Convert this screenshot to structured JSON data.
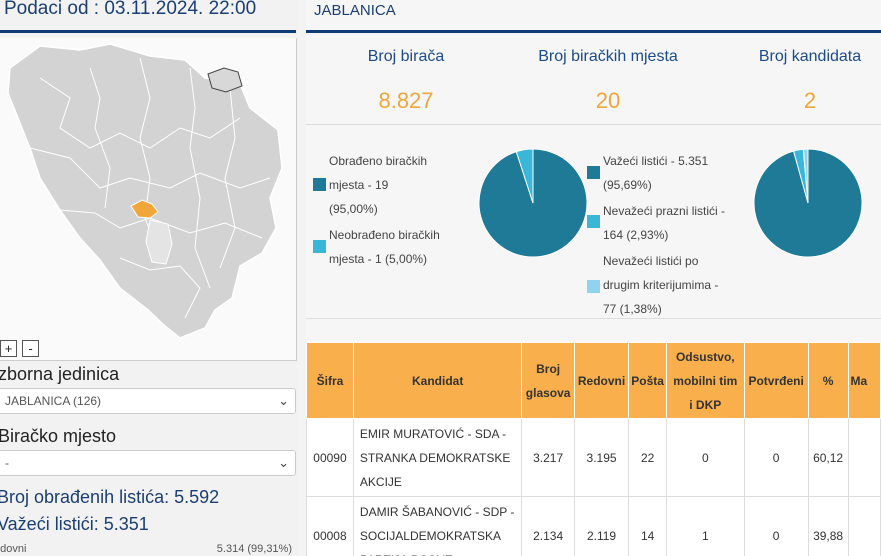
{
  "header": {
    "date_title": "Podaci od : 03.11.2024. 22:00",
    "municipality": "JABLANICA"
  },
  "zoom": {
    "plus": "+",
    "minus": "-"
  },
  "filters": {
    "electoral_unit_label": "zborna jedinica",
    "electoral_unit_value": "JABLANICA (126)",
    "polling_station_label": "Biračko mjesto",
    "polling_station_value": "-"
  },
  "summary": {
    "processed_ballots": "Broj obrađenih listića: 5.592",
    "valid_ballots": "Važeći listići: 5.351",
    "regular_label": "edovni",
    "regular_value": "5.314 (99,31%)"
  },
  "stats": [
    {
      "label": "Broj birača",
      "value": "8.827"
    },
    {
      "label": "Broj biračkih mjesta",
      "value": "20"
    },
    {
      "label": "Broj kandidata",
      "value": "2"
    }
  ],
  "legend_left": {
    "processed_l1": "Obrađeno biračkih",
    "processed_l2": "mjesta - 19",
    "processed_l3": "(95,00%)",
    "unprocessed_l1": "Neobrađeno biračkih",
    "unprocessed_l2": "mjesta - 1 (5,00%)"
  },
  "legend_right": {
    "valid_l1": "Važeći listići - 5.351",
    "valid_l2": "(95,69%)",
    "blank_l1": "Nevažeći prazni listići -",
    "blank_l2": "164 (2,93%)",
    "other_l1": "Nevažeći listići po",
    "other_l2": "drugim kriterijumima -",
    "other_l3": "77 (1,38%)"
  },
  "pie_stations": {
    "slices": [
      {
        "name": "processed",
        "value": 95.0,
        "color": "#1e7a96"
      },
      {
        "name": "unprocessed",
        "value": 5.0,
        "color": "#3ab7d8"
      }
    ]
  },
  "pie_ballots": {
    "slices": [
      {
        "name": "valid",
        "value": 95.69,
        "color": "#1e7a96"
      },
      {
        "name": "blank",
        "value": 2.93,
        "color": "#3ab7d8"
      },
      {
        "name": "other",
        "value": 1.38,
        "color": "#8fd3ee"
      }
    ]
  },
  "table": {
    "headers": {
      "code": "Šifra",
      "candidate": "Kandidat",
      "votes_l1": "Broj",
      "votes_l2": "glasova",
      "regular": "Redovni",
      "mail": "Pošta",
      "absent_l1": "Odsustvo,",
      "absent_l2": "mobilni tim",
      "absent_l3": "i DKP",
      "confirmed": "Potvrđeni",
      "percent": "%",
      "cut": "Ma"
    },
    "rows": [
      {
        "code": "00090",
        "name_l1": "EMIR MURATOVIĆ - SDA -",
        "name_l2": "STRANKA DEMOKRATSKE",
        "name_l3": "AKCIJE",
        "votes": "3.217",
        "regular": "3.195",
        "mail": "22",
        "absent": "0",
        "confirmed": "0",
        "percent": "60,12"
      },
      {
        "code": "00008",
        "name_l1": "DAMIR ŠABANOVIĆ - SDP -",
        "name_l2": "SOCIJALDEMOKRATSKA",
        "name_l3": "PARTIJA BOSNE",
        "votes": "2.134",
        "regular": "2.119",
        "mail": "14",
        "absent": "1",
        "confirmed": "0",
        "percent": "39,88"
      }
    ]
  },
  "colors": {
    "navy": "#0f3c78",
    "orange": "#f0a63a",
    "teal": "#1e7a96",
    "light_blue": "#3ab7d8",
    "pale_blue": "#8fd3ee",
    "table_header": "#f9b04c"
  }
}
